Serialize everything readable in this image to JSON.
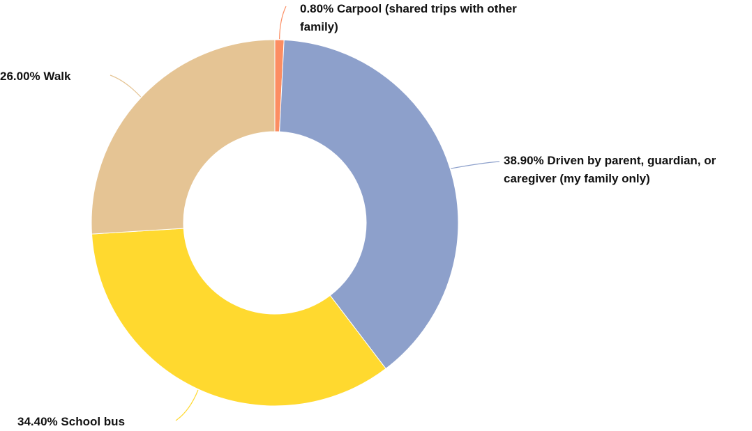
{
  "chart_data": {
    "type": "donut",
    "categories": [
      "Carpool (shared trips with other family)",
      "Driven by parent, guardian, or caregiver (my family only)",
      "School bus",
      "Walk"
    ],
    "values": [
      0.8,
      38.9,
      34.4,
      26.0
    ],
    "value_labels": [
      "0.80%",
      "38.90%",
      "34.40%",
      "26.00%"
    ],
    "colors": [
      "#fc8d62",
      "#8da0cb",
      "#ffd92f",
      "#e5c494"
    ]
  }
}
